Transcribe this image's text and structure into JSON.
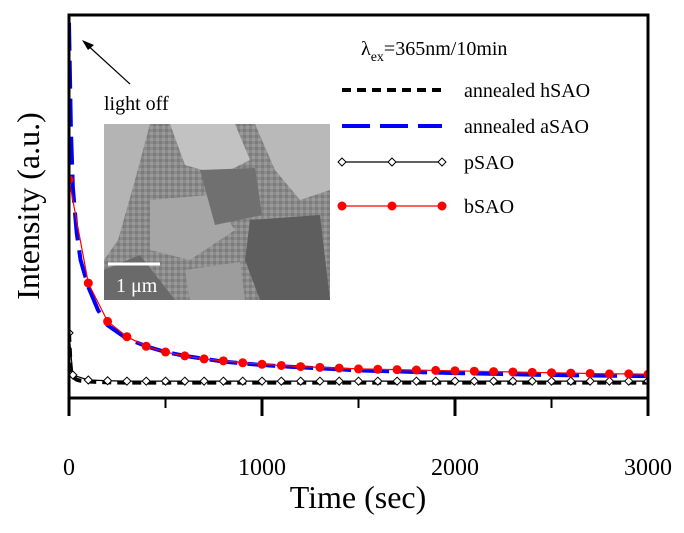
{
  "chart_data": {
    "type": "line",
    "xlabel": "Time (sec)",
    "ylabel": "Intensity (a.u.)",
    "xlim": [
      0,
      3000
    ],
    "ylim": [
      0,
      1.0
    ],
    "xticks": [
      0,
      1000,
      2000,
      3000
    ],
    "grid": false,
    "legend_title": "λex=365nm/10min",
    "legend_title_main": "λ",
    "legend_title_sub": "ex",
    "legend_title_rest": "=365nm/10min",
    "legend_position": "top-right",
    "annotation": "light off",
    "inset_scale_label": "1 μm",
    "series": [
      {
        "name": "annealed hSAO",
        "color": "#000000",
        "style": "short-dash",
        "x": [
          0,
          10,
          20,
          40,
          60,
          100,
          150,
          200,
          300,
          400,
          600,
          800,
          1000,
          1500,
          2000,
          2500,
          3000
        ],
        "y": [
          0.17,
          0.065,
          0.055,
          0.048,
          0.045,
          0.043,
          0.042,
          0.041,
          0.04,
          0.04,
          0.04,
          0.04,
          0.04,
          0.04,
          0.04,
          0.04,
          0.04
        ]
      },
      {
        "name": "annealed aSAO",
        "color": "#0000ff",
        "style": "long-dash",
        "x": [
          0,
          10,
          20,
          40,
          60,
          100,
          150,
          200,
          300,
          400,
          500,
          600,
          800,
          1000,
          1200,
          1500,
          2000,
          2500,
          3000
        ],
        "y": [
          0.98,
          0.7,
          0.55,
          0.43,
          0.36,
          0.29,
          0.23,
          0.19,
          0.155,
          0.135,
          0.12,
          0.11,
          0.095,
          0.086,
          0.08,
          0.072,
          0.065,
          0.06,
          0.057
        ]
      },
      {
        "name": "pSAO",
        "color": "#000000",
        "style": "solid-open-diamond",
        "x": [
          0,
          20,
          100,
          200,
          300,
          400,
          500,
          600,
          700,
          800,
          900,
          1000,
          1100,
          1200,
          1300,
          1400,
          1500,
          1600,
          1700,
          1800,
          1900,
          2000,
          2100,
          2200,
          2300,
          2400,
          2500,
          2600,
          2700,
          2800,
          2900,
          3000
        ],
        "y": [
          0.17,
          0.06,
          0.047,
          0.045,
          0.044,
          0.044,
          0.044,
          0.044,
          0.044,
          0.044,
          0.044,
          0.044,
          0.044,
          0.044,
          0.044,
          0.044,
          0.044,
          0.044,
          0.044,
          0.044,
          0.044,
          0.044,
          0.044,
          0.044,
          0.044,
          0.044,
          0.044,
          0.044,
          0.044,
          0.044,
          0.044,
          0.044
        ]
      },
      {
        "name": "bSAO",
        "color": "#ff0000",
        "style": "solid-filled-circle",
        "x": [
          0,
          100,
          200,
          300,
          400,
          500,
          600,
          700,
          800,
          900,
          1000,
          1100,
          1200,
          1300,
          1400,
          1500,
          1600,
          1700,
          1800,
          1900,
          2000,
          2100,
          2200,
          2300,
          2400,
          2500,
          2600,
          2700,
          2800,
          2900,
          3000
        ],
        "y": [
          0.57,
          0.3,
          0.2,
          0.16,
          0.135,
          0.12,
          0.11,
          0.102,
          0.097,
          0.092,
          0.088,
          0.085,
          0.082,
          0.08,
          0.078,
          0.076,
          0.075,
          0.074,
          0.073,
          0.072,
          0.071,
          0.07,
          0.069,
          0.068,
          0.067,
          0.066,
          0.065,
          0.064,
          0.063,
          0.063,
          0.062
        ]
      }
    ]
  }
}
